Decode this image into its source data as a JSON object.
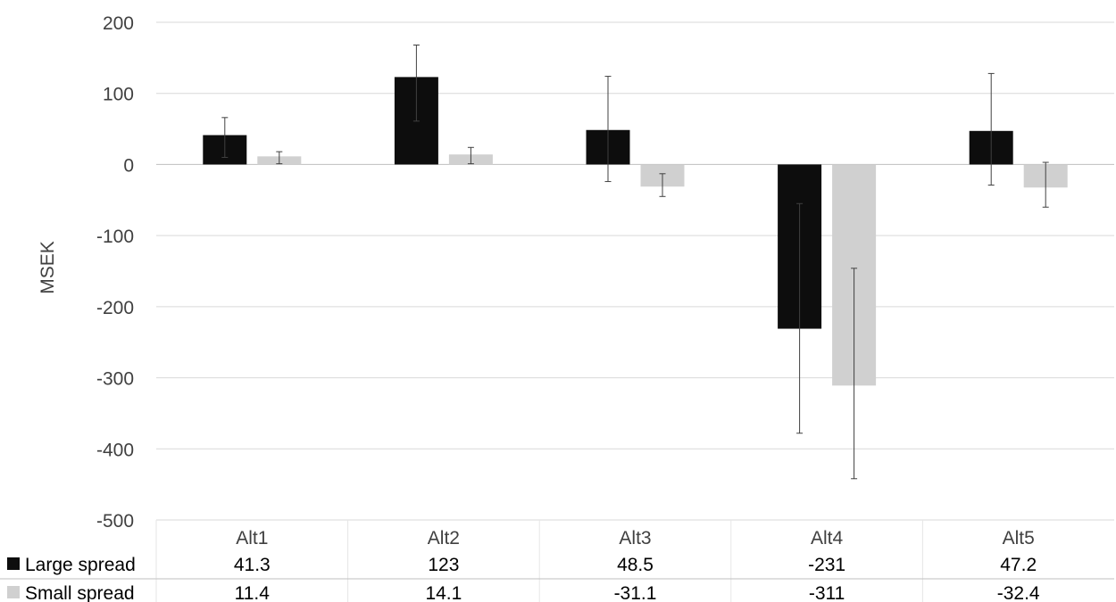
{
  "chart_data": {
    "type": "bar",
    "ylabel": "MSEK",
    "xlabel": "",
    "title": "",
    "ylim": [
      -500,
      200
    ],
    "yticks": [
      200,
      100,
      0,
      -100,
      -200,
      -300,
      -400,
      -500
    ],
    "grid": true,
    "legend": "data-table",
    "categories": [
      "Alt1",
      "Alt2",
      "Alt3",
      "Alt4",
      "Alt5"
    ],
    "series": [
      {
        "name": "Large spread",
        "color": "#0d0d0d",
        "values": [
          41.3,
          123,
          48.5,
          -231,
          47.2
        ],
        "labels": [
          "41.3",
          "123",
          "48.5",
          "-231",
          "47.2"
        ],
        "error_low": [
          10,
          61,
          -24,
          -378,
          -29
        ],
        "error_high": [
          66,
          168,
          124,
          -55,
          128
        ]
      },
      {
        "name": "Small spread",
        "color": "#d0d0d0",
        "values": [
          11.4,
          14.1,
          -31.1,
          -311,
          -32.4
        ],
        "labels": [
          "11.4",
          "14.1",
          "-31.1",
          "-311",
          "-32.4"
        ],
        "error_low": [
          1,
          1,
          -45,
          -442,
          -60
        ],
        "error_high": [
          18,
          24,
          -13,
          -146,
          3
        ]
      }
    ]
  }
}
